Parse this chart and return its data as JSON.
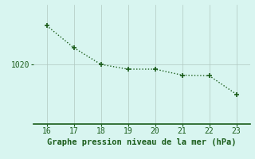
{
  "x": [
    16,
    17,
    18,
    19,
    20,
    21,
    22,
    23
  ],
  "y": [
    1026.5,
    1022.8,
    1020.0,
    1019.2,
    1019.2,
    1018.2,
    1018.1,
    1015.0
  ],
  "line_color": "#1a5c1a",
  "marker": "+",
  "marker_size": 4,
  "marker_linewidth": 1.2,
  "bg_color": "#d8f5f0",
  "grid_color": "#b0c8c0",
  "spine_color": "#1a5c1a",
  "xlabel": "Graphe pression niveau de la mer (hPa)",
  "xlabel_color": "#1a5c1a",
  "xlabel_fontsize": 7.5,
  "tick_color": "#1a5c1a",
  "tick_fontsize": 7,
  "xlim": [
    15.5,
    23.5
  ],
  "ylim": [
    1010.0,
    1030.0
  ],
  "yticks": [
    1020
  ],
  "xticks": [
    16,
    17,
    18,
    19,
    20,
    21,
    22,
    23
  ]
}
